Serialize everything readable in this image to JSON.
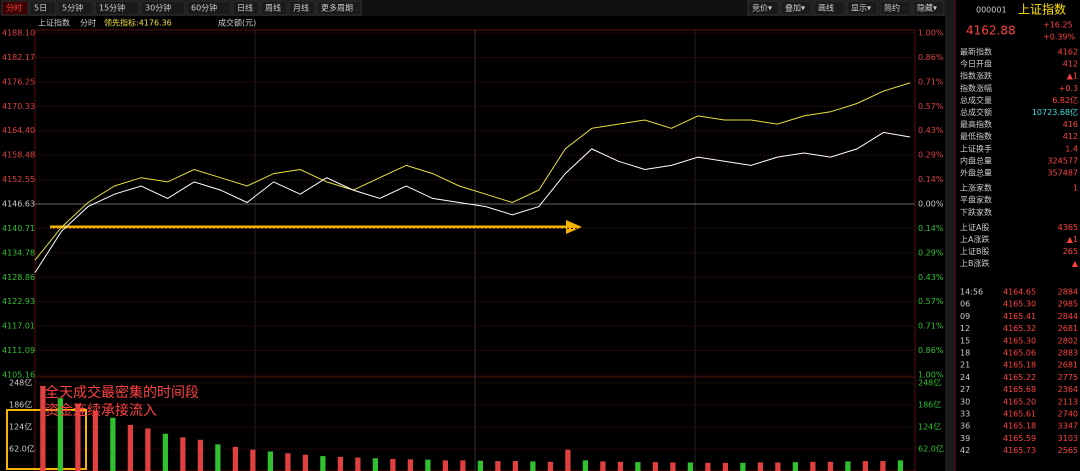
{
  "toolbar": {
    "tabs": [
      "分时",
      "5日",
      "5分钟",
      "15分钟",
      "30分钟",
      "60分钟",
      "日线",
      "周线",
      "月线",
      "更多周期"
    ],
    "buttons": [
      "竞价▾",
      "叠加▾",
      "画线",
      "显示▾",
      "简约",
      "隐藏▾"
    ]
  },
  "chart": {
    "header": [
      "上证指数",
      "分时",
      "领先指标:4176.36",
      "成交额(元)"
    ],
    "price_ticks": [
      {
        "value": 4188.1,
        "label": "4188.10"
      },
      {
        "value": 4182.17,
        "label": "4182.17"
      },
      {
        "value": 4176.25,
        "label": "4176.25"
      },
      {
        "value": 4170.33,
        "label": "4170.33"
      },
      {
        "value": 4164.4,
        "label": "4164.40"
      },
      {
        "value": 4158.48,
        "label": "4158.48"
      },
      {
        "value": 4152.55,
        "label": "4152.55"
      },
      {
        "value": 4146.63,
        "label": "4146.63"
      },
      {
        "value": 4140.71,
        "label": "4140.71"
      },
      {
        "value": 4134.78,
        "label": "4134.78"
      },
      {
        "value": 4128.86,
        "label": "4128.86"
      },
      {
        "value": 4122.93,
        "label": "4122.93"
      },
      {
        "value": 4117.01,
        "label": "4117.01"
      },
      {
        "value": 4111.09,
        "label": "4111.09"
      },
      {
        "value": 4105.16,
        "label": "4105.16"
      }
    ],
    "pct_ticks": [
      "1.00%",
      "0.86%",
      "0.71%",
      "0.57%",
      "0.43%",
      "0.29%",
      "0.14%",
      "0.00%",
      "0.14%",
      "0.29%",
      "0.43%",
      "0.57%",
      "0.71%",
      "0.86%",
      "1.00%"
    ],
    "volume_ticks": [
      {
        "value": 248,
        "label": "248亿"
      },
      {
        "value": 186,
        "label": "186亿"
      },
      {
        "value": 124,
        "label": "124亿"
      },
      {
        "value": 62,
        "label": "62.0亿"
      }
    ],
    "white_line": [
      4130,
      4140,
      4146,
      4149,
      4151,
      4148,
      4152,
      4150,
      4147,
      4152,
      4149,
      4153,
      4150,
      4148,
      4151,
      4148,
      4147,
      4146,
      4144,
      4146,
      4154,
      4160,
      4157,
      4155,
      4156,
      4158,
      4157,
      4156,
      4158,
      4159,
      4158,
      4160,
      4164,
      4162.88
    ],
    "yellow_line": [
      4133,
      4141,
      4147,
      4151,
      4153,
      4152,
      4155,
      4153,
      4151,
      4154,
      4155,
      4152,
      4150,
      4153,
      4156,
      4154,
      4151,
      4149,
      4147,
      4150,
      4160,
      4165,
      4166,
      4167,
      4165,
      4168,
      4167,
      4167,
      4166,
      4168,
      4169,
      4171,
      4174,
      4176
    ],
    "volume": [
      240,
      205,
      190,
      170,
      150,
      130,
      120,
      105,
      95,
      88,
      75,
      68,
      60,
      55,
      50,
      46,
      42,
      40,
      38,
      36,
      34,
      33,
      32,
      30,
      30,
      29,
      28,
      28,
      27,
      26,
      60,
      30,
      27,
      26,
      25,
      25,
      24,
      24,
      23,
      23,
      23,
      24,
      24,
      25,
      26,
      26,
      27,
      28,
      28,
      30
    ],
    "annotations": [
      "全天成交最密集的时间段",
      "资金连续承接流入"
    ]
  },
  "panel": {
    "code": "000001",
    "name": "上证指数",
    "price": "4162.88",
    "change": "+16.25",
    "change_pct": "+0.39%",
    "rows": [
      [
        "最新指数",
        "4162"
      ],
      [
        "今日开盘",
        "412"
      ],
      [
        "指数涨跌",
        "▲1"
      ],
      [
        "指数涨幅",
        "+0.3"
      ],
      [
        "总成交量",
        "6.82亿"
      ],
      [
        "总成交额",
        "10723.68亿"
      ],
      [
        "最高指数",
        "416"
      ],
      [
        "最低指数",
        "412"
      ],
      [
        "上证换手",
        "1.4"
      ],
      [
        "内盘总量",
        "324577"
      ],
      [
        "外盘总量",
        "357487"
      ],
      [
        "上涨家数",
        "1"
      ],
      [
        "平盘家数",
        ""
      ],
      [
        "下跌家数",
        ""
      ],
      [
        "上证A股",
        "4365"
      ],
      [
        "上A涨跌",
        "▲1"
      ],
      [
        "上证B股",
        "265"
      ],
      [
        "上B涨跌",
        "▲"
      ]
    ],
    "ticks": [
      [
        "14:56",
        "4164.65",
        "2884"
      ],
      [
        "06",
        "4165.30",
        "2985"
      ],
      [
        "09",
        "4165.41",
        "2844"
      ],
      [
        "12",
        "4165.32",
        "2681"
      ],
      [
        "15",
        "4165.30",
        "2802"
      ],
      [
        "18",
        "4165.06",
        "2883"
      ],
      [
        "21",
        "4165.18",
        "2681"
      ],
      [
        "24",
        "4165.22",
        "2775"
      ],
      [
        "27",
        "4165.68",
        "2364"
      ],
      [
        "30",
        "4165.20",
        "2113"
      ],
      [
        "33",
        "4165.61",
        "2740"
      ],
      [
        "36",
        "4165.18",
        "3347"
      ],
      [
        "39",
        "4165.59",
        "3103"
      ],
      [
        "42",
        "4165.73",
        "2565"
      ]
    ]
  }
}
